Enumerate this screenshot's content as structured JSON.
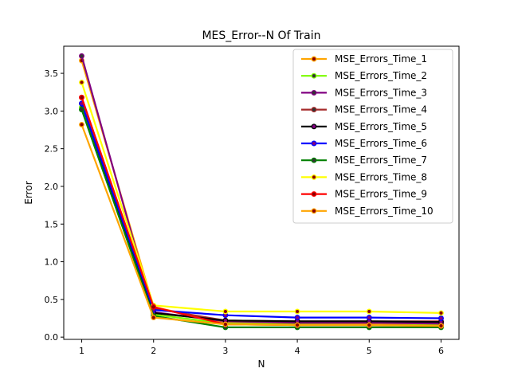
{
  "chart_data": {
    "type": "line",
    "title": "MES_Error--N Of Train",
    "xlabel": "N",
    "ylabel": "Error",
    "x": [
      1,
      2,
      3,
      4,
      5,
      6
    ],
    "xticks": [
      "1",
      "2",
      "3",
      "4",
      "5",
      "6"
    ],
    "yticks": [
      "0.0",
      "0.5",
      "1.0",
      "1.5",
      "2.0",
      "2.5",
      "3.0",
      "3.5"
    ],
    "xlim": [
      0.75,
      6.25
    ],
    "ylim": [
      -0.03,
      3.86
    ],
    "grid": false,
    "legend_position": "upper right",
    "series": [
      {
        "name": "MSE_Errors_Time_1",
        "color": "#ffa500",
        "marker": "#8b0000",
        "values": [
          3.67,
          0.4,
          0.19,
          0.18,
          0.18,
          0.18
        ]
      },
      {
        "name": "MSE_Errors_Time_2",
        "color": "#7cfc00",
        "marker": "#333333",
        "values": [
          3.05,
          0.3,
          0.18,
          0.17,
          0.16,
          0.16
        ]
      },
      {
        "name": "MSE_Errors_Time_3",
        "color": "#800080",
        "marker": "#333333",
        "values": [
          3.73,
          0.33,
          0.21,
          0.19,
          0.19,
          0.18
        ]
      },
      {
        "name": "MSE_Errors_Time_4",
        "color": "#a52a2a",
        "marker": "#333333",
        "values": [
          3.18,
          0.38,
          0.22,
          0.21,
          0.21,
          0.21
        ]
      },
      {
        "name": "MSE_Errors_Time_5",
        "color": "#000000",
        "marker": "#800080",
        "values": [
          3.1,
          0.32,
          0.22,
          0.21,
          0.21,
          0.2
        ]
      },
      {
        "name": "MSE_Errors_Time_6",
        "color": "#0000ff",
        "marker": "#800080",
        "values": [
          3.1,
          0.36,
          0.29,
          0.26,
          0.26,
          0.25
        ]
      },
      {
        "name": "MSE_Errors_Time_7",
        "color": "#008000",
        "marker": "#333333",
        "values": [
          3.02,
          0.28,
          0.13,
          0.13,
          0.13,
          0.13
        ]
      },
      {
        "name": "MSE_Errors_Time_8",
        "color": "#ffff00",
        "marker": "#8b0000",
        "values": [
          3.38,
          0.42,
          0.34,
          0.34,
          0.34,
          0.32
        ]
      },
      {
        "name": "MSE_Errors_Time_9",
        "color": "#ff0000",
        "marker": "#8b0000",
        "values": [
          3.18,
          0.4,
          0.17,
          0.16,
          0.16,
          0.15
        ]
      },
      {
        "name": "MSE_Errors_Time_10",
        "color": "#ffa500",
        "marker": "#8b0000",
        "values": [
          2.82,
          0.26,
          0.17,
          0.16,
          0.16,
          0.15
        ]
      }
    ]
  }
}
